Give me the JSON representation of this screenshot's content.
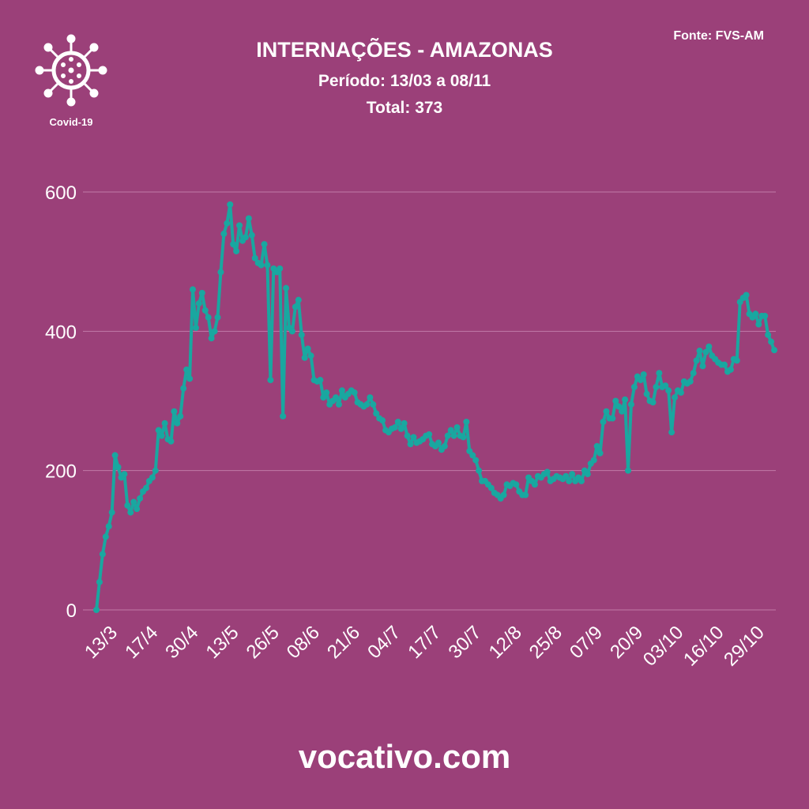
{
  "chart_data": {
    "type": "line",
    "title": "INTERNAÇÕES - AMAZONAS",
    "subtitle": "Período: 13/03 a 08/11",
    "total": "Total: 373",
    "source": "Fonte: FVS-AM",
    "logo_label": "Covid-19",
    "footer": "vocativo.com",
    "categories": [
      "13/3",
      null,
      null,
      null,
      null,
      null,
      null,
      null,
      null,
      null,
      null,
      null,
      null,
      "17/4",
      null,
      null,
      null,
      null,
      null,
      null,
      null,
      null,
      null,
      null,
      null,
      null,
      "30/4",
      null,
      null,
      null,
      null,
      null,
      null,
      null,
      null,
      null,
      null,
      null,
      null,
      "13/5",
      null,
      null,
      null,
      null,
      null,
      null,
      null,
      null,
      null,
      null,
      null,
      null,
      "26/5",
      null,
      null,
      null,
      null,
      null,
      null,
      null,
      null,
      null,
      null,
      null,
      null,
      "08/6",
      null,
      null,
      null,
      null,
      null,
      null,
      null,
      null,
      null,
      null,
      null,
      null,
      "21/6",
      null,
      null,
      null,
      null,
      null,
      null,
      null,
      null,
      null,
      null,
      null,
      null,
      "04/7",
      null,
      null,
      null,
      null,
      null,
      null,
      null,
      null,
      null,
      null,
      null,
      null,
      "17/7",
      null,
      null,
      null,
      null,
      null,
      null,
      null,
      null,
      null,
      null,
      null,
      null,
      "30/7",
      null,
      null,
      null,
      null,
      null,
      null,
      null,
      null,
      null,
      null,
      null,
      null,
      "12/8",
      null,
      null,
      null,
      null,
      null,
      null,
      null,
      null,
      null,
      null,
      null,
      null,
      "25/8",
      null,
      null,
      null,
      null,
      null,
      null,
      null,
      null,
      null,
      null,
      null,
      null,
      "07/9",
      null,
      null,
      null,
      null,
      null,
      null,
      null,
      null,
      null,
      null,
      null,
      null,
      "20/9",
      null,
      null,
      null,
      null,
      null,
      null,
      null,
      null,
      null,
      null,
      null,
      null,
      "03/10",
      null,
      null,
      null,
      null,
      null,
      null,
      null,
      null,
      null,
      null,
      null,
      null,
      "16/10",
      null,
      null,
      null,
      null,
      null,
      null,
      null,
      null,
      null,
      null,
      null,
      null,
      "29/10",
      null,
      null,
      null,
      null,
      null,
      null,
      null,
      null,
      null,
      null
    ],
    "series": [
      {
        "color": "#19a7a0",
        "values": [
          0,
          40,
          80,
          105,
          120,
          140,
          222,
          205,
          190,
          195,
          150,
          140,
          155,
          145,
          160,
          170,
          175,
          185,
          190,
          200,
          258,
          250,
          268,
          245,
          242,
          285,
          268,
          278,
          318,
          345,
          332,
          460,
          405,
          440,
          455,
          430,
          420,
          390,
          400,
          420,
          485,
          540,
          555,
          582,
          525,
          515,
          552,
          530,
          535,
          562,
          538,
          505,
          498,
          495,
          525,
          495,
          330,
          490,
          485,
          490,
          278,
          462,
          405,
          400,
          435,
          445,
          395,
          362,
          375,
          365,
          330,
          328,
          330,
          305,
          312,
          295,
          300,
          305,
          295,
          315,
          305,
          310,
          315,
          312,
          298,
          295,
          292,
          295,
          305,
          295,
          282,
          275,
          272,
          258,
          255,
          260,
          262,
          270,
          260,
          268,
          250,
          238,
          248,
          240,
          242,
          245,
          250,
          252,
          238,
          235,
          240,
          230,
          235,
          250,
          258,
          250,
          262,
          250,
          248,
          270,
          228,
          222,
          215,
          200,
          185,
          185,
          180,
          175,
          168,
          165,
          160,
          165,
          180,
          178,
          182,
          180,
          170,
          165,
          165,
          190,
          185,
          180,
          192,
          190,
          195,
          198,
          185,
          188,
          192,
          190,
          188,
          192,
          185,
          195,
          185,
          190,
          185,
          200,
          195,
          210,
          215,
          235,
          225,
          270,
          285,
          275,
          275,
          300,
          292,
          285,
          302,
          200,
          295,
          320,
          335,
          330,
          338,
          310,
          300,
          298,
          320,
          340,
          320,
          322,
          315,
          255,
          305,
          315,
          312,
          328,
          325,
          328,
          340,
          358,
          372,
          350,
          370,
          378,
          365,
          360,
          355,
          352,
          352,
          342,
          345,
          360,
          358,
          442,
          448,
          452,
          425,
          420,
          425,
          410,
          422,
          422,
          395,
          385,
          373
        ]
      }
    ],
    "ylim": [
      0,
      600
    ],
    "yticks": [
      0,
      200,
      400,
      600
    ],
    "grid": true
  }
}
